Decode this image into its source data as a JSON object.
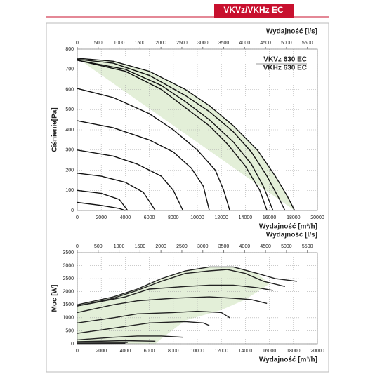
{
  "header": "VKVz/VKHz EC",
  "chart_data": [
    {
      "type": "line",
      "x_label": "Wydajność [m³/h]",
      "x2_label": "Wydajność [l/s]",
      "y_label": "Ciśnienie[Pa]",
      "annotations": [
        "VKVz 630 EC",
        "VKHz 630 EC"
      ],
      "xlim": [
        0,
        20000
      ],
      "xticks": [
        0,
        2000,
        4000,
        6000,
        8000,
        10000,
        12000,
        14000,
        16000,
        18000,
        20000
      ],
      "x2lim": [
        0,
        5740
      ],
      "x2ticks": [
        0,
        500,
        1000,
        1500,
        2000,
        2500,
        3000,
        3500,
        4000,
        4500,
        5000,
        5500
      ],
      "ylim": [
        0,
        800
      ],
      "yticks": [
        0,
        100,
        200,
        300,
        400,
        500,
        600,
        700,
        800
      ],
      "grid": true,
      "area": {
        "color": "#e3efd8",
        "x": [
          0,
          3000,
          6000,
          9000,
          11000,
          13000,
          15000,
          16500,
          17500,
          18100
        ],
        "values": [
          755,
          740,
          690,
          600,
          520,
          420,
          300,
          170,
          70,
          0
        ]
      },
      "series": [
        {
          "color": "#111",
          "x": [
            0,
            3000,
            6000,
            9000,
            11000,
            13000,
            15000,
            16500,
            17500,
            18100
          ],
          "values": [
            755,
            740,
            690,
            600,
            520,
            420,
            300,
            170,
            70,
            0
          ]
        },
        {
          "color": "#111",
          "x": [
            0,
            3000,
            6000,
            9000,
            11000,
            13000,
            14500,
            15800,
            16800,
            17300
          ],
          "values": [
            750,
            730,
            670,
            570,
            490,
            390,
            290,
            170,
            60,
            0
          ]
        },
        {
          "color": "#111",
          "x": [
            0,
            4000,
            7000,
            9000,
            11000,
            13000,
            14500,
            15500,
            16300
          ],
          "values": [
            745,
            700,
            620,
            540,
            450,
            340,
            230,
            120,
            0
          ]
        },
        {
          "color": "#111",
          "x": [
            0,
            4000,
            7000,
            9000,
            11000,
            12500,
            14000,
            15200,
            15800
          ],
          "values": [
            745,
            690,
            600,
            510,
            420,
            330,
            220,
            100,
            0
          ]
        },
        {
          "color": "#111",
          "x": [
            0,
            3000,
            6000,
            8000,
            10000,
            11500,
            12200,
            12700
          ],
          "values": [
            605,
            560,
            480,
            400,
            300,
            200,
            100,
            0
          ]
        },
        {
          "color": "#111",
          "x": [
            0,
            3000,
            6000,
            8000,
            9500,
            10500,
            11000
          ],
          "values": [
            445,
            410,
            350,
            290,
            210,
            120,
            0
          ]
        },
        {
          "color": "#111",
          "x": [
            0,
            3000,
            5000,
            7000,
            8000,
            8800
          ],
          "values": [
            300,
            270,
            230,
            170,
            100,
            0
          ]
        },
        {
          "color": "#111",
          "x": [
            0,
            2000,
            4000,
            5500,
            6500
          ],
          "values": [
            185,
            170,
            140,
            90,
            0
          ]
        },
        {
          "color": "#111",
          "x": [
            0,
            2000,
            3500,
            4200
          ],
          "values": [
            100,
            85,
            55,
            0
          ]
        },
        {
          "color": "#111",
          "x": [
            0,
            2000,
            3500,
            4000
          ],
          "values": [
            40,
            25,
            10,
            0
          ]
        }
      ]
    },
    {
      "type": "line",
      "x_label": "Wydajność [m³/h]",
      "x2_label": "Wydajność [l/s]",
      "y_label": "Moc [W]",
      "xlim": [
        0,
        20000
      ],
      "xticks": [
        0,
        2000,
        4000,
        6000,
        8000,
        10000,
        12000,
        14000,
        16000,
        18000,
        20000
      ],
      "x2lim": [
        0,
        5740
      ],
      "x2ticks": [
        0,
        500,
        1000,
        1500,
        2000,
        2500,
        3000,
        3500,
        4000,
        4500,
        5000,
        5500
      ],
      "ylim": [
        0,
        3500
      ],
      "yticks": [
        0,
        500,
        1000,
        1500,
        2000,
        2500,
        3000,
        3500
      ],
      "grid": true,
      "area": {
        "color": "#e3efd8",
        "x": [
          0,
          3000,
          5000,
          7000,
          9000,
          11000,
          13000,
          15000,
          16000,
          14000,
          12000,
          9000,
          7000,
          6500,
          0
        ],
        "values": [
          1500,
          1800,
          2100,
          2500,
          2800,
          2950,
          2950,
          2700,
          2300,
          1700,
          1300,
          900,
          200,
          0,
          0
        ]
      },
      "series": [
        {
          "color": "#222",
          "x": [
            0,
            3000,
            5000,
            7000,
            9000,
            11000,
            13000,
            15000,
            16500,
            18300
          ],
          "values": [
            1500,
            1800,
            2100,
            2500,
            2800,
            2950,
            2950,
            2700,
            2500,
            2400
          ]
        },
        {
          "color": "#222",
          "x": [
            0,
            3000,
            5000,
            7000,
            9000,
            11000,
            12500,
            14000,
            15500,
            17300
          ],
          "values": [
            1450,
            1750,
            2050,
            2400,
            2700,
            2800,
            2850,
            2700,
            2400,
            2200
          ]
        },
        {
          "color": "#222",
          "x": [
            0,
            4000,
            6000,
            9000,
            11000,
            13000,
            15000,
            16300
          ],
          "values": [
            1450,
            1800,
            2100,
            2200,
            2250,
            2250,
            2150,
            2050
          ]
        },
        {
          "color": "#222",
          "x": [
            0,
            3000,
            5000,
            8000,
            11000,
            13000,
            14500,
            15800
          ],
          "values": [
            1200,
            1500,
            1650,
            1750,
            1800,
            1750,
            1700,
            1550
          ]
        },
        {
          "color": "#222",
          "x": [
            0,
            3000,
            5000,
            8000,
            10000,
            12000,
            12700
          ],
          "values": [
            800,
            1000,
            1150,
            1200,
            1250,
            1200,
            1000
          ]
        },
        {
          "color": "#222",
          "x": [
            0,
            3000,
            6000,
            9000,
            10500,
            11000
          ],
          "values": [
            400,
            600,
            800,
            850,
            800,
            700
          ]
        },
        {
          "color": "#222",
          "x": [
            0,
            3000,
            5000,
            7000,
            8800
          ],
          "values": [
            150,
            250,
            300,
            300,
            250
          ]
        },
        {
          "color": "#222",
          "x": [
            0,
            4000,
            6500
          ],
          "values": [
            80,
            120,
            100
          ]
        },
        {
          "color": "#222",
          "x": [
            0,
            4200
          ],
          "values": [
            50,
            50
          ]
        },
        {
          "color": "#222",
          "x": [
            0,
            4000
          ],
          "values": [
            10,
            20
          ]
        }
      ]
    }
  ]
}
